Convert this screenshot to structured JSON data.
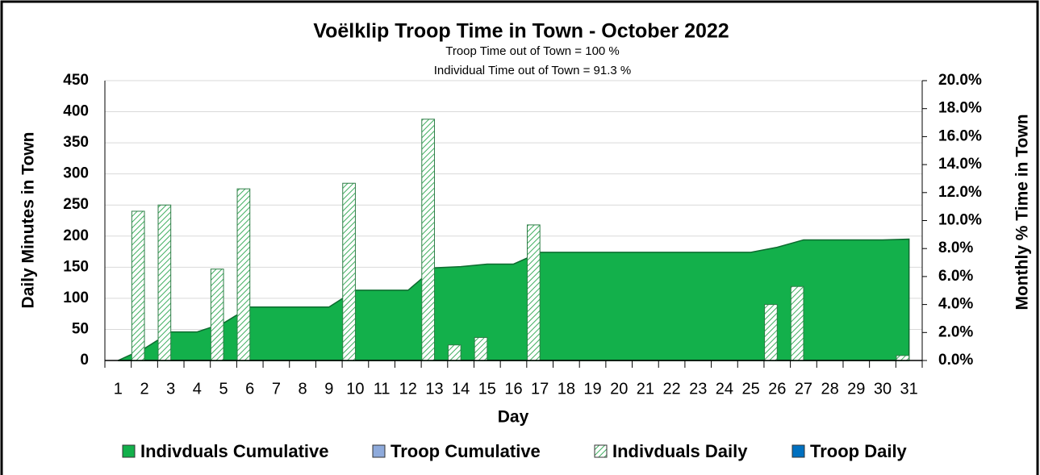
{
  "chart_data": {
    "type": "bar",
    "title": "Voëlklip Troop Time in Town - October 2022",
    "annotations": [
      "Troop Time out of Town =   100 %",
      "Individual Time out of Town =   91.3 %"
    ],
    "x_label": "Day",
    "y_label": "Daily Minutes in Town",
    "y2_label": "Monthly % Time in Town",
    "categories": [
      "1",
      "2",
      "3",
      "4",
      "5",
      "6",
      "7",
      "8",
      "9",
      "10",
      "11",
      "12",
      "13",
      "14",
      "15",
      "16",
      "17",
      "18",
      "19",
      "20",
      "21",
      "22",
      "23",
      "24",
      "25",
      "26",
      "27",
      "28",
      "29",
      "30",
      "31"
    ],
    "series": [
      {
        "name": "Indivduals Cumulative",
        "type": "area",
        "axis": "y2",
        "color": "#13b04b",
        "values": [
          0,
          0.86,
          2.04,
          2.04,
          2.67,
          3.82,
          3.82,
          3.82,
          3.82,
          5.02,
          5.02,
          5.02,
          6.62,
          6.71,
          6.89,
          6.89,
          7.73,
          7.73,
          7.73,
          7.73,
          7.73,
          7.73,
          7.73,
          7.73,
          7.73,
          8.09,
          8.62,
          8.62,
          8.62,
          8.62,
          8.67
        ]
      },
      {
        "name": "Troop Cumulative",
        "type": "area",
        "axis": "y2",
        "color": "#8eaadb",
        "values": [
          0,
          0,
          0,
          0,
          0,
          0,
          0,
          0,
          0,
          0,
          0,
          0,
          0,
          0,
          0,
          0,
          0,
          0,
          0,
          0,
          0,
          0,
          0,
          0,
          0,
          0,
          0,
          0,
          0,
          0,
          0
        ]
      },
      {
        "name": "Indivduals Daily",
        "type": "bar",
        "color": "#3fae5f",
        "values": [
          0,
          240,
          250,
          0,
          147,
          276,
          0,
          0,
          0,
          285,
          0,
          0,
          388,
          25,
          37,
          0,
          218,
          0,
          0,
          0,
          0,
          0,
          0,
          0,
          0,
          90,
          119,
          0,
          0,
          0,
          8
        ]
      },
      {
        "name": "Troop Daily",
        "type": "bar",
        "color": "#0070c0",
        "values": [
          0,
          0,
          0,
          0,
          0,
          0,
          0,
          0,
          0,
          0,
          0,
          0,
          0,
          0,
          0,
          0,
          0,
          0,
          0,
          0,
          0,
          0,
          0,
          0,
          0,
          0,
          0,
          0,
          0,
          0,
          0
        ]
      }
    ],
    "ylim": [
      0,
      450
    ],
    "yticks": [
      0,
      50,
      100,
      150,
      200,
      250,
      300,
      350,
      400,
      450
    ],
    "y2lim": [
      0,
      20
    ],
    "y2ticks": [
      {
        "value": 0,
        "label": "0.0%"
      },
      {
        "value": 2,
        "label": "2.0%"
      },
      {
        "value": 4,
        "label": "4.0%"
      },
      {
        "value": 6,
        "label": "6.0%"
      },
      {
        "value": 8,
        "label": "8.0%"
      },
      {
        "value": 10,
        "label": "10.0%"
      },
      {
        "value": 12,
        "label": "12.0%"
      },
      {
        "value": 14,
        "label": "14.0%"
      },
      {
        "value": 16,
        "label": "16.0%"
      },
      {
        "value": 18,
        "label": "18.0%"
      },
      {
        "value": 20,
        "label": "20.0%"
      }
    ],
    "grid": true,
    "legend": "bottom"
  }
}
